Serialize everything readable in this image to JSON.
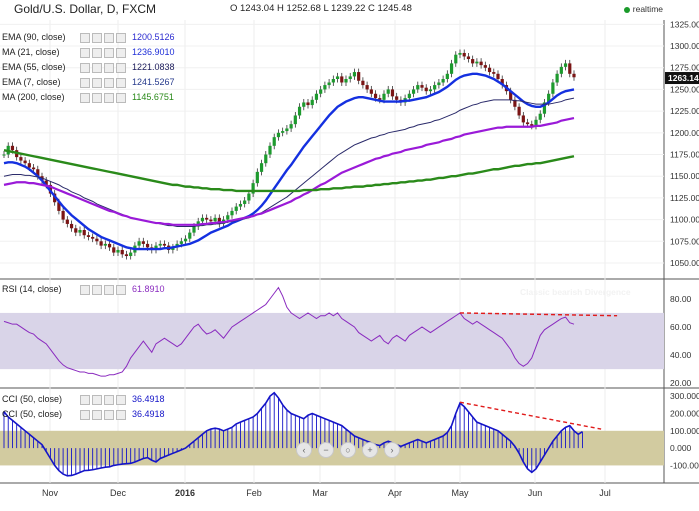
{
  "header": {
    "title": "Gold/U.S. Dollar, D, FXCM",
    "ohlc": "O 1243.04  H 1252.68  L 1239.22  C 1245.48",
    "status": "realtime"
  },
  "colors": {
    "ema90": "#2222cc",
    "ma21": "#1f2fd8",
    "ema55": "#1a1a5a",
    "ema7": "#263a8c",
    "ma200": "#2a8a1a",
    "rsi": "#8a2bbf",
    "cci": "#1414c8",
    "divergence": "#e01b1b",
    "candle_bull": "#1d9a2e",
    "candle_bear": "#7a1515",
    "last_price_bg": "#111111"
  },
  "legend": [
    {
      "label": "EMA (90, close)",
      "value": "1200.5126",
      "color": "#2b2bd0"
    },
    {
      "label": "MA (21, close)",
      "value": "1236.9010",
      "color": "#1f2fd8"
    },
    {
      "label": "EMA (55, close)",
      "value": "1221.0838",
      "color": "#1a1a5a"
    },
    {
      "label": "EMA (7, close)",
      "value": "1241.5267",
      "color": "#263a8c"
    },
    {
      "label": "MA (200, close)",
      "value": "1145.6751",
      "color": "#2a8a1a"
    }
  ],
  "rsi_legend": {
    "label": "RSI (14, close)",
    "value": "61.8910",
    "color": "#8a2bbf"
  },
  "cci_legend": [
    {
      "label": "CCI (50, close)",
      "value": "36.4918",
      "color": "#1414c8"
    },
    {
      "label": "CCI (50, close)",
      "value": "36.4918",
      "color": "#1414c8"
    }
  ],
  "annotation": "Classic bearish Divergence",
  "last_price": "1263.14",
  "chart_data": {
    "type": "line",
    "title": "Gold/U.S. Dollar, D, FXCM",
    "x_tick_labels": [
      "Nov",
      "Dec",
      "2016",
      "Feb",
      "Mar",
      "Apr",
      "May",
      "Jun",
      "Jul"
    ],
    "price_axis": {
      "ticks": [
        1050,
        1075,
        1100,
        1125,
        1150,
        1175,
        1200,
        1225,
        1250,
        1275,
        1300,
        1325
      ],
      "ylim": [
        1035,
        1330
      ]
    },
    "rsi_axis": {
      "ticks": [
        20,
        40,
        60,
        80
      ],
      "ylim": [
        18,
        92
      ],
      "band": [
        30,
        70
      ]
    },
    "cci_axis": {
      "ticks": [
        -100,
        0,
        100,
        200,
        300
      ],
      "ylim": [
        -190,
        330
      ],
      "band": [
        -100,
        100
      ]
    },
    "price_series": [
      {
        "name": "Price",
        "values": [
          1175,
          1185,
          1180,
          1172,
          1168,
          1165,
          1160,
          1158,
          1150,
          1145,
          1140,
          1130,
          1120,
          1110,
          1100,
          1095,
          1090,
          1085,
          1088,
          1082,
          1080,
          1078,
          1075,
          1070,
          1072,
          1068,
          1062,
          1065,
          1060,
          1058,
          1062,
          1070,
          1075,
          1072,
          1068,
          1065,
          1070,
          1072,
          1070,
          1065,
          1068,
          1072,
          1075,
          1078,
          1085,
          1092,
          1098,
          1102,
          1100,
          1098,
          1102,
          1095,
          1100,
          1105,
          1110,
          1115,
          1118,
          1122,
          1130,
          1142,
          1155,
          1165,
          1175,
          1185,
          1195,
          1200,
          1202,
          1205,
          1210,
          1220,
          1230,
          1235,
          1232,
          1238,
          1245,
          1250,
          1255,
          1258,
          1262,
          1265,
          1258,
          1262,
          1265,
          1270,
          1260,
          1255,
          1250,
          1245,
          1240,
          1238,
          1245,
          1250,
          1242,
          1238,
          1235,
          1240,
          1245,
          1250,
          1255,
          1252,
          1248,
          1250,
          1255,
          1258,
          1262,
          1268,
          1280,
          1290,
          1292,
          1288,
          1285,
          1280,
          1282,
          1278,
          1275,
          1270,
          1268,
          1262,
          1255,
          1248,
          1238,
          1230,
          1220,
          1212,
          1210,
          1208,
          1215,
          1222,
          1235,
          1245,
          1258,
          1268,
          1276,
          1280,
          1268,
          1264
        ]
      },
      {
        "name": "MA (21, close)",
        "values": [
          1165,
          1166,
          1166,
          1165,
          1163,
          1161,
          1158,
          1154,
          1150,
          1145,
          1139,
          1133,
          1127,
          1121,
          1115,
          1110,
          1105,
          1101,
          1097,
          1093,
          1089,
          1086,
          1083,
          1080,
          1078,
          1076,
          1074,
          1072,
          1070,
          1068,
          1067,
          1066,
          1066,
          1066,
          1066,
          1066,
          1066,
          1066,
          1067,
          1067,
          1068,
          1069,
          1070,
          1071,
          1072,
          1074,
          1076,
          1079,
          1082,
          1085,
          1087,
          1089,
          1091,
          1093,
          1096,
          1098,
          1100,
          1102,
          1104,
          1107,
          1111,
          1116,
          1122,
          1129,
          1136,
          1143,
          1150,
          1157,
          1163,
          1170,
          1177,
          1184,
          1190,
          1196,
          1202,
          1208,
          1214,
          1220,
          1225,
          1230,
          1233,
          1236,
          1238,
          1240,
          1241,
          1241,
          1240,
          1239,
          1238,
          1237,
          1236,
          1236,
          1236,
          1236,
          1236,
          1237,
          1237,
          1238,
          1239,
          1240,
          1241,
          1243,
          1245,
          1247,
          1250,
          1253,
          1257,
          1261,
          1264,
          1266,
          1267,
          1268,
          1268,
          1267,
          1266,
          1264,
          1262,
          1259,
          1256,
          1252,
          1248,
          1244,
          1240,
          1236,
          1233,
          1231,
          1230,
          1230,
          1232,
          1235,
          1239,
          1243,
          1246,
          1248,
          1249,
          1250
        ]
      },
      {
        "name": "EMA (55, close)",
        "values": [
          1150,
          1151,
          1152,
          1152,
          1152,
          1151,
          1151,
          1150,
          1149,
          1148,
          1146,
          1144,
          1142,
          1140,
          1137,
          1135,
          1132,
          1130,
          1128,
          1125,
          1123,
          1121,
          1118,
          1116,
          1114,
          1112,
          1110,
          1108,
          1106,
          1104,
          1102,
          1101,
          1100,
          1099,
          1098,
          1097,
          1096,
          1095,
          1094,
          1093,
          1093,
          1092,
          1092,
          1092,
          1092,
          1092,
          1093,
          1093,
          1094,
          1094,
          1095,
          1095,
          1096,
          1097,
          1098,
          1099,
          1100,
          1101,
          1102,
          1104,
          1106,
          1108,
          1111,
          1114,
          1117,
          1120,
          1123,
          1126,
          1130,
          1134,
          1138,
          1142,
          1146,
          1150,
          1154,
          1158,
          1162,
          1166,
          1170,
          1174,
          1177,
          1180,
          1183,
          1186,
          1188,
          1190,
          1192,
          1194,
          1195,
          1197,
          1198,
          1200,
          1201,
          1202,
          1203,
          1204,
          1206,
          1207,
          1209,
          1210,
          1211,
          1212,
          1214,
          1215,
          1217,
          1219,
          1221,
          1223,
          1226,
          1228,
          1230,
          1232,
          1233,
          1235,
          1236,
          1237,
          1238,
          1238,
          1238,
          1238,
          1238,
          1237,
          1237,
          1236,
          1235,
          1234,
          1233,
          1233,
          1233,
          1233,
          1234,
          1235,
          1236,
          1238,
          1239,
          1240
        ]
      },
      {
        "name": "EMA (90, close)",
        "values": [
          1140,
          1141,
          1142,
          1143,
          1143,
          1143,
          1142,
          1142,
          1141,
          1140,
          1139,
          1138,
          1136,
          1134,
          1132,
          1130,
          1128,
          1126,
          1124,
          1122,
          1120,
          1118,
          1116,
          1114,
          1112,
          1110,
          1109,
          1107,
          1105,
          1104,
          1102,
          1101,
          1100,
          1099,
          1098,
          1097,
          1096,
          1096,
          1095,
          1095,
          1094,
          1094,
          1094,
          1094,
          1094,
          1094,
          1094,
          1095,
          1095,
          1096,
          1096,
          1097,
          1097,
          1098,
          1099,
          1100,
          1101,
          1102,
          1103,
          1104,
          1106,
          1107,
          1109,
          1111,
          1113,
          1115,
          1117,
          1119,
          1121,
          1124,
          1126,
          1129,
          1131,
          1134,
          1137,
          1140,
          1142,
          1145,
          1148,
          1151,
          1154,
          1156,
          1158,
          1160,
          1162,
          1164,
          1166,
          1168,
          1170,
          1171,
          1173,
          1174,
          1176,
          1177,
          1178,
          1180,
          1181,
          1182,
          1183,
          1184,
          1186,
          1187,
          1188,
          1189,
          1191,
          1192,
          1193,
          1195,
          1196,
          1198,
          1199,
          1200,
          1201,
          1202,
          1203,
          1204,
          1205,
          1206,
          1206,
          1207,
          1207,
          1207,
          1207,
          1207,
          1207,
          1207,
          1208,
          1208,
          1209,
          1210,
          1211,
          1212,
          1214,
          1215,
          1216,
          1217
        ]
      },
      {
        "name": "MA (200, close)",
        "values": [
          1180,
          1179,
          1178,
          1177,
          1176,
          1175,
          1174,
          1173,
          1172,
          1171,
          1170,
          1169,
          1168,
          1167,
          1166,
          1165,
          1164,
          1163,
          1162,
          1161,
          1160,
          1159,
          1158,
          1157,
          1156,
          1155,
          1154,
          1153,
          1152,
          1151,
          1150,
          1149,
          1148,
          1147,
          1146,
          1145,
          1144,
          1143,
          1142,
          1141,
          1140,
          1140,
          1139,
          1138,
          1138,
          1137,
          1137,
          1136,
          1136,
          1135,
          1135,
          1135,
          1134,
          1134,
          1134,
          1133,
          1133,
          1133,
          1133,
          1133,
          1133,
          1133,
          1133,
          1133,
          1133,
          1133,
          1133,
          1133,
          1133,
          1133,
          1133,
          1134,
          1134,
          1134,
          1134,
          1135,
          1135,
          1135,
          1136,
          1136,
          1136,
          1137,
          1137,
          1138,
          1138,
          1138,
          1139,
          1139,
          1140,
          1140,
          1141,
          1141,
          1142,
          1142,
          1143,
          1143,
          1144,
          1144,
          1145,
          1145,
          1146,
          1146,
          1147,
          1148,
          1148,
          1149,
          1150,
          1150,
          1151,
          1152,
          1153,
          1153,
          1154,
          1155,
          1156,
          1157,
          1158,
          1158,
          1159,
          1160,
          1161,
          1162,
          1162,
          1163,
          1164,
          1164,
          1165,
          1165,
          1166,
          1167,
          1168,
          1169,
          1170,
          1171,
          1172,
          1173
        ]
      }
    ],
    "rsi_series": {
      "name": "RSI (14, close)",
      "values": [
        64,
        63,
        62,
        62,
        60,
        58,
        56,
        55,
        52,
        50,
        48,
        44,
        40,
        36,
        33,
        31,
        30,
        29,
        28,
        28,
        27,
        27,
        26,
        25,
        25,
        26,
        26,
        27,
        28,
        32,
        38,
        42,
        46,
        50,
        46,
        42,
        48,
        50,
        52,
        50,
        48,
        46,
        48,
        52,
        56,
        60,
        62,
        58,
        55,
        56,
        58,
        55,
        52,
        56,
        60,
        62,
        64,
        66,
        68,
        70,
        72,
        74,
        76,
        80,
        84,
        88,
        82,
        74,
        70,
        68,
        66,
        68,
        70,
        68,
        66,
        68,
        68,
        70,
        68,
        70,
        66,
        64,
        62,
        60,
        56,
        54,
        52,
        50,
        52,
        54,
        50,
        48,
        52,
        54,
        52,
        50,
        54,
        56,
        58,
        60,
        58,
        56,
        58,
        60,
        62,
        64,
        66,
        68,
        70,
        66,
        64,
        62,
        64,
        62,
        60,
        58,
        56,
        54,
        52,
        48,
        44,
        38,
        34,
        32,
        34,
        38,
        46,
        54,
        58,
        60,
        62,
        64,
        66,
        67,
        63,
        62
      ]
    },
    "rsi_divergence": {
      "from": [
        108,
        70
      ],
      "to": [
        140,
        68
      ]
    },
    "cci_series": {
      "name": "CCI (50, close)",
      "values": [
        210,
        180,
        160,
        140,
        120,
        100,
        80,
        60,
        40,
        20,
        -20,
        -60,
        -100,
        -130,
        -150,
        -160,
        -158,
        -150,
        -140,
        -130,
        -128,
        -125,
        -120,
        -115,
        -110,
        -108,
        -100,
        -96,
        -92,
        -90,
        -88,
        -80,
        -70,
        -60,
        -55,
        -70,
        -80,
        -60,
        -50,
        -40,
        -30,
        -20,
        -10,
        0,
        20,
        40,
        60,
        80,
        100,
        110,
        115,
        110,
        100,
        110,
        120,
        140,
        150,
        160,
        170,
        180,
        200,
        230,
        260,
        300,
        320,
        290,
        250,
        220,
        200,
        190,
        180,
        170,
        190,
        200,
        190,
        180,
        170,
        160,
        150,
        140,
        130,
        110,
        90,
        70,
        60,
        50,
        40,
        30,
        20,
        15,
        30,
        40,
        30,
        20,
        10,
        20,
        30,
        40,
        50,
        40,
        30,
        40,
        50,
        60,
        70,
        90,
        130,
        200,
        260,
        240,
        210,
        180,
        150,
        140,
        130,
        120,
        110,
        100,
        80,
        60,
        40,
        10,
        -30,
        -80,
        -120,
        -140,
        -120,
        -80,
        -40,
        0,
        40,
        70,
        100,
        120,
        130,
        100,
        80,
        95
      ]
    },
    "cci_divergence": {
      "from": [
        108,
        265
      ],
      "to": [
        140,
        110
      ]
    }
  }
}
